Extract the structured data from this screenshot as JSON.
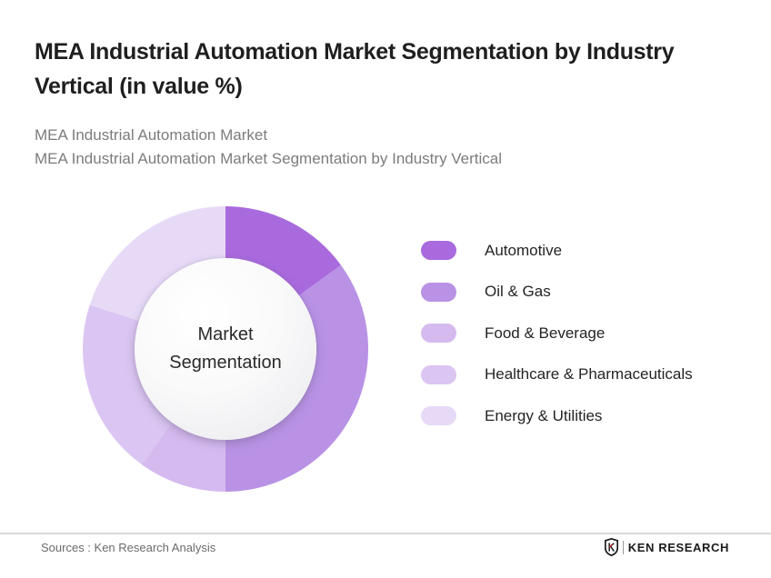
{
  "header": {
    "title_lines": [
      "MEA Industrial Automation Market Segmentation by Industry",
      "Vertical (in value %)"
    ],
    "subtitle_lines": [
      "MEA Industrial Automation Market",
      "MEA Industrial Automation Market Segmentation by Industry Vertical"
    ]
  },
  "chart_data": {
    "type": "pie",
    "variant": "donut",
    "title": "MEA Industrial Automation Market Segmentation by Industry Vertical (in value %)",
    "center_label": "Market Segmentation",
    "direction": "clockwise",
    "start_angle_deg": 0,
    "legend_position": "right",
    "data_labels_shown": false,
    "series": [
      {
        "name": "Automotive",
        "value_pct": 15,
        "color": "#a96ade"
      },
      {
        "name": "Oil & Gas",
        "value_pct": 35,
        "color": "#b992e6"
      },
      {
        "name": "Food & Beverage",
        "value_pct": 10,
        "color": "#d5baf0"
      },
      {
        "name": "Healthcare & Pharmaceuticals",
        "value_pct": 20,
        "color": "#dbc5f2"
      },
      {
        "name": "Energy & Utilities",
        "value_pct": 20,
        "color": "#e7daf7"
      }
    ]
  },
  "footer": {
    "sources": "Sources : Ken Research Analysis",
    "brand": "KEN RESEARCH",
    "brand_accent_color": "#c4242b"
  }
}
